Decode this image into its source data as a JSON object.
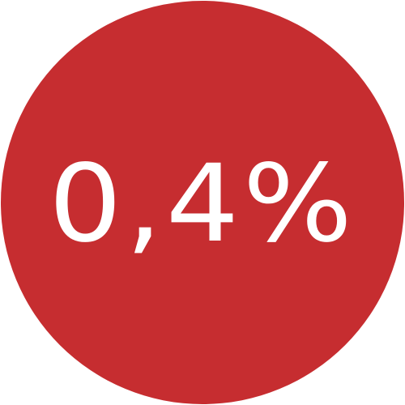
{
  "badge": {
    "value": "0,4%",
    "background_color": "#c62d30",
    "text_color": "#ffffff"
  }
}
